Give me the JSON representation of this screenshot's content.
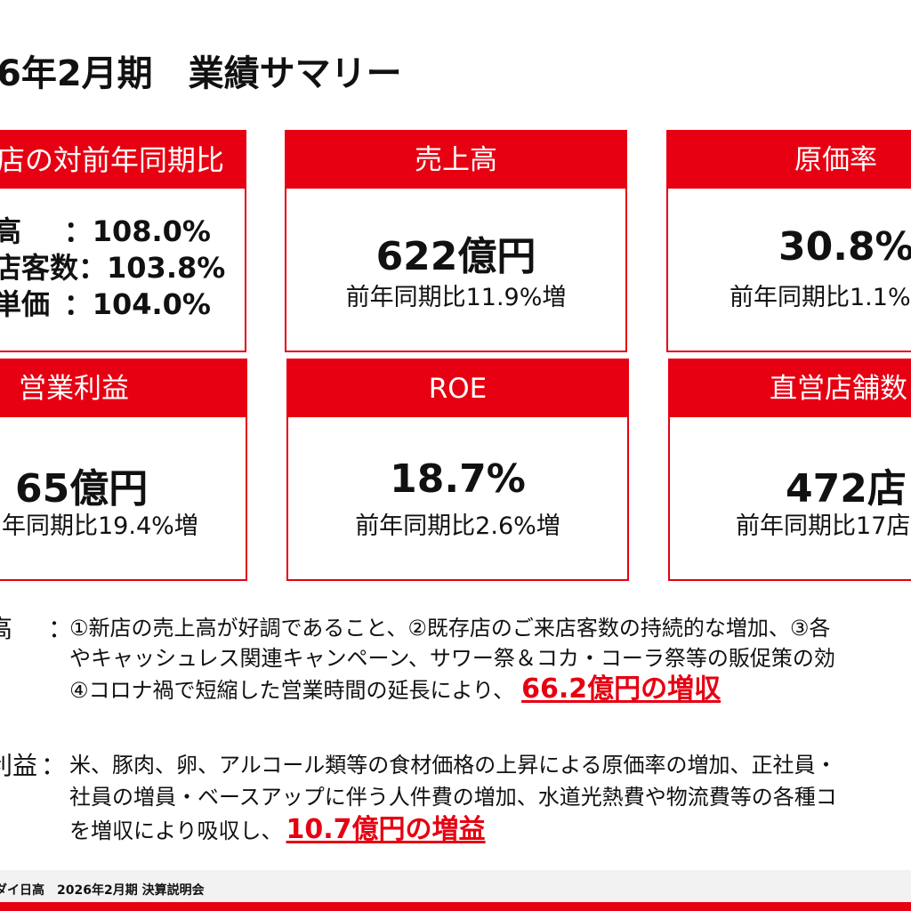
{
  "title": "6年2月期　業績サマリー",
  "accent_color": "#e60012",
  "cards": {
    "existing": {
      "header": "店の対前年同期比",
      "rows": [
        {
          "label": "高",
          "value": "：108.0%"
        },
        {
          "label": "店客数",
          "value": "：103.8%"
        },
        {
          "label": "単価",
          "value": "：104.0%"
        }
      ]
    },
    "sales": {
      "header": "売上高",
      "value": "622億円",
      "sub": "前年同期比11.9%増"
    },
    "cost": {
      "header": "原価率",
      "value": "30.8%",
      "sub": "前年同期比1.1%"
    },
    "profit": {
      "header": "営業利益",
      "value": "65億円",
      "sub": "年同期比19.4%増"
    },
    "roe": {
      "header": "ROE",
      "value": "18.7%",
      "sub": "前年同期比2.6%増"
    },
    "stores": {
      "header": "直営店舗数",
      "value": "472店",
      "sub": "前年同期比17店"
    }
  },
  "notes": {
    "sales": {
      "label": "高",
      "colon": "：",
      "line1": "①新店の売上高が好調であること、②既存店のご来店客数の持続的な増加、③各",
      "line2": "やキャッシュレス関連キャンペーン、サワー祭＆コカ・コーラ祭等の販促策の効",
      "line3": "④コロナ禍で短縮した営業時間の延長により、",
      "highlight": "66.2億円の増収"
    },
    "profit": {
      "label": "利益",
      "colon": "：",
      "line1": "米、豚肉、卵、アルコール類等の食材価格の上昇による原価率の増加、正社員・",
      "line2": "社員の増員・ベースアップに伴う人件費の増加、水道光熱費や物流費等の各種コ",
      "line3": "を増収により吸収し、",
      "highlight": "10.7億円の増益"
    }
  },
  "footer": {
    "text": "ダイ日高　2026年2月期  決算説明会"
  }
}
